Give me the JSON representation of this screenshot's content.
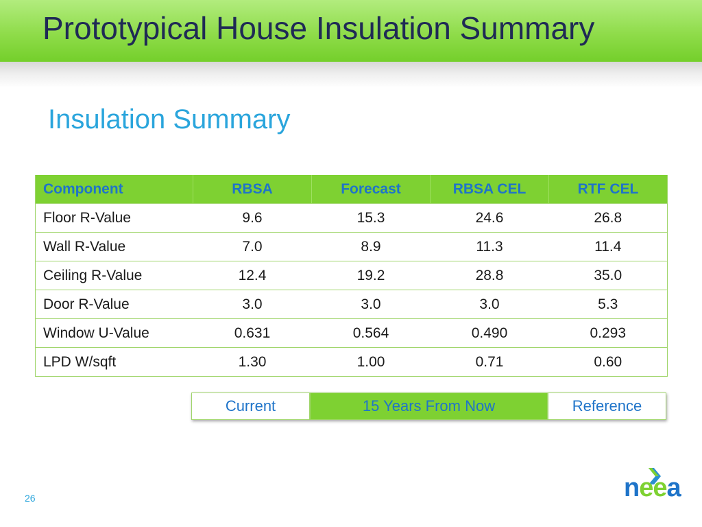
{
  "slide": {
    "title": "Prototypical House Insulation Summary",
    "subtitle": "Insulation Summary",
    "page_number": "26"
  },
  "table": {
    "headers": [
      "Component",
      "RBSA",
      "Forecast",
      "RBSA CEL",
      "RTF CEL"
    ],
    "rows": [
      [
        "Floor R-Value",
        "9.6",
        "15.3",
        "24.6",
        "26.8"
      ],
      [
        "Wall R-Value",
        "7.0",
        "8.9",
        "11.3",
        "11.4"
      ],
      [
        "Ceiling R-Value",
        "12.4",
        "19.2",
        "28.8",
        "35.0"
      ],
      [
        "Door R-Value",
        "3.0",
        "3.0",
        "3.0",
        "5.3"
      ],
      [
        "Window U-Value",
        "0.631",
        "0.564",
        "0.490",
        "0.293"
      ],
      [
        "LPD W/sqft",
        "1.30",
        "1.00",
        "0.71",
        "0.60"
      ]
    ]
  },
  "legend": {
    "items": [
      "Current",
      "15 Years From Now",
      "Reference"
    ],
    "active": "15 Years From Now"
  },
  "logo": {
    "text_1": "n",
    "text_2": "ee",
    "text_3": "a",
    "icon": "chevron-arrow-icon"
  },
  "colors": {
    "title_bar_green": "#8fdc4a",
    "header_green": "#7ed132",
    "title_text": "#1f2a55",
    "accent_blue": "#2aa5dc",
    "header_text_blue": "#1f74c9"
  }
}
